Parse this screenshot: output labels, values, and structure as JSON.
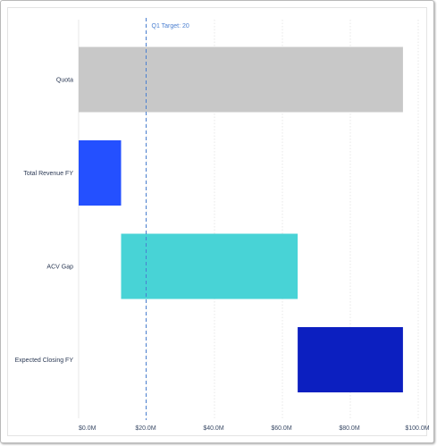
{
  "chart_data": {
    "type": "bar",
    "orientation": "horizontal",
    "subtype": "waterfall",
    "categories": [
      "Quota",
      "Total Revenue FY",
      "ACV Gap",
      "Expected Closing FY"
    ],
    "bars": [
      {
        "category": "Quota",
        "start": 0,
        "end": 95.5,
        "color": "#c8c8c8"
      },
      {
        "category": "Total Revenue FY",
        "start": 0,
        "end": 12.5,
        "color": "#2450ff"
      },
      {
        "category": "ACV Gap",
        "start": 12.5,
        "end": 64.5,
        "color": "#48d3d6"
      },
      {
        "category": "Expected Closing FY",
        "start": 64.5,
        "end": 95.5,
        "color": "#0c1fc0"
      }
    ],
    "xlim": [
      0,
      100
    ],
    "xticks": [
      0,
      20,
      40,
      60,
      80,
      100
    ],
    "xtick_labels": [
      "$0.0M",
      "$20.0M",
      "$40.0M",
      "$60.0M",
      "$80.0M",
      "$100.0M"
    ],
    "grid": "vertical-dotted",
    "reference_line": {
      "value": 20,
      "label": "Q1 Target: 20",
      "color": "#4a7fd0",
      "style": "dashed"
    },
    "title": "",
    "xlabel": "",
    "ylabel": ""
  }
}
